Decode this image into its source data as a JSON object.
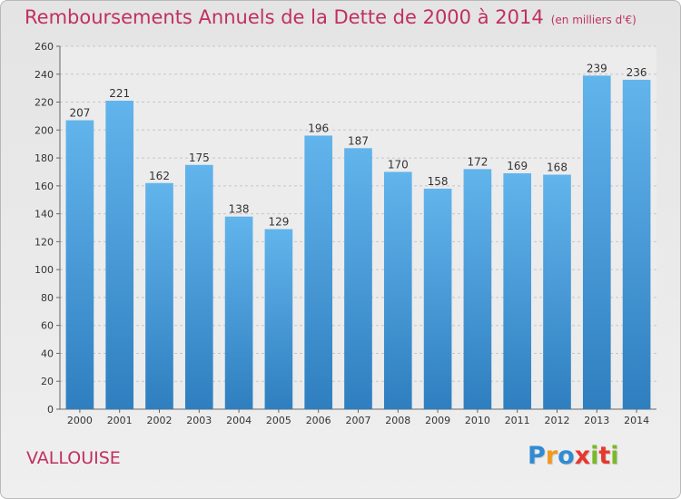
{
  "header": {
    "title": "Remboursements Annuels de la Dette de 2000 à 2014",
    "unit": "(en milliers d'€)"
  },
  "footer": {
    "commune": "VALLOUISE",
    "logo_letters": [
      "P",
      "r",
      "o",
      "x",
      "i",
      "t",
      "i"
    ],
    "logo_colors": [
      "#2f8bd4",
      "#f29a1d",
      "#2f8bd4",
      "#e8382d",
      "#7ab929",
      "#e8382d",
      "#7ab929"
    ]
  },
  "chart_data": {
    "type": "bar",
    "title": "Remboursements Annuels de la Dette de 2000 à 2014",
    "subtitle": "(en milliers d'€)",
    "categories": [
      "2000",
      "2001",
      "2002",
      "2003",
      "2004",
      "2005",
      "2006",
      "2007",
      "2008",
      "2009",
      "2010",
      "2011",
      "2012",
      "2013",
      "2014"
    ],
    "values": [
      207,
      221,
      162,
      175,
      138,
      129,
      196,
      187,
      170,
      158,
      172,
      169,
      168,
      239,
      236
    ],
    "data_labels": [
      "207",
      "221",
      "162",
      "175",
      "138",
      "129",
      "196",
      "187",
      "170",
      "158",
      "172",
      "169",
      "168",
      "239",
      "236"
    ],
    "yticks": [
      "0",
      "20",
      "40",
      "60",
      "80",
      "100",
      "120",
      "140",
      "160",
      "180",
      "200",
      "220",
      "240",
      "260"
    ],
    "ylim": [
      0,
      260
    ],
    "ytick_step": 20,
    "grid": true,
    "bar_color_top": "#62b4ec",
    "bar_color_bottom": "#2f7fc0"
  }
}
